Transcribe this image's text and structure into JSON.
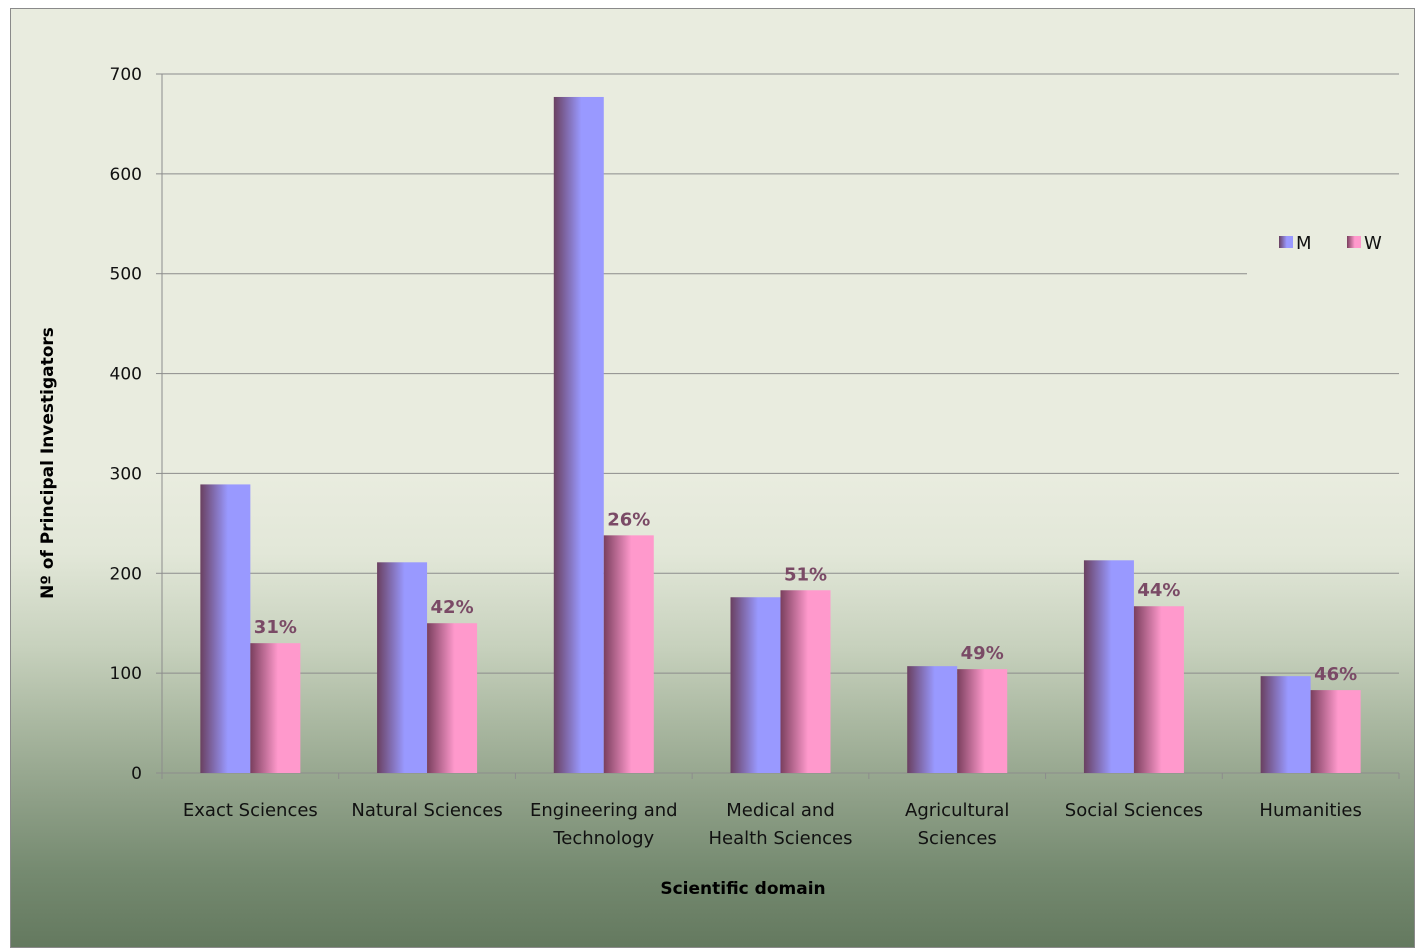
{
  "chart_data": {
    "type": "bar",
    "xlabel": "Scientific domain",
    "ylabel": "Nº of Principal Investigators",
    "ylim": [
      0,
      700
    ],
    "yticks": [
      0,
      100,
      200,
      300,
      400,
      500,
      600,
      700
    ],
    "grid": true,
    "legend_position": "right",
    "categories": [
      [
        "Exact Sciences"
      ],
      [
        "Natural Sciences"
      ],
      [
        "Engineering and",
        "Technology"
      ],
      [
        "Medical and",
        "Health Sciences"
      ],
      [
        "Agricultural",
        "Sciences"
      ],
      [
        "Social Sciences"
      ],
      [
        "Humanities"
      ]
    ],
    "series": [
      {
        "name": "M",
        "color": "#9999ff",
        "values": [
          289,
          211,
          677,
          176,
          107,
          213,
          97
        ]
      },
      {
        "name": "W",
        "color": "#ff99cc",
        "values": [
          130,
          150,
          238,
          183,
          104,
          167,
          83
        ]
      }
    ],
    "data_labels": [
      "31%",
      "42%",
      "26%",
      "51%",
      "49%",
      "44%",
      "46%"
    ]
  }
}
